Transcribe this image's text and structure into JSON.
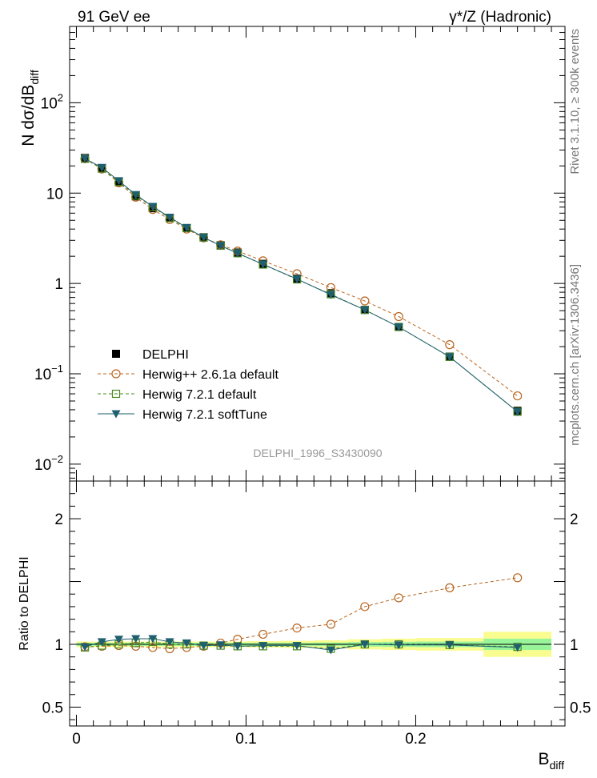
{
  "header": {
    "left": "91 GeV ee",
    "right": "γ*/Z (Hadronic)"
  },
  "side_labels": {
    "rivet": "Rivet 3.1.10, ≥ 300k events",
    "mcplots": "mcplots.cern.ch [arXiv:1306.3436]"
  },
  "watermark": "DELPHI_1996_S3430090",
  "chart_data": [
    {
      "type": "line",
      "panel": "main",
      "yscale": "log",
      "ylabel_main": "N dσ/dB",
      "ylabel_sub": "diff",
      "xlim": [
        -0.004,
        0.288
      ],
      "ylim": [
        0.0065,
        700
      ],
      "y_tick_labels": [
        {
          "main": "10",
          "exp": "−2"
        },
        {
          "main": "10",
          "exp": "−1"
        },
        {
          "main": "1",
          "exp": ""
        },
        {
          "main": "10",
          "exp": ""
        },
        {
          "main": "10",
          "exp": "2"
        }
      ],
      "y_tick_values": [
        0.01,
        0.1,
        1,
        10,
        100
      ],
      "x": [
        0.005,
        0.015,
        0.025,
        0.035,
        0.045,
        0.055,
        0.065,
        0.075,
        0.085,
        0.095,
        0.11,
        0.13,
        0.15,
        0.17,
        0.19,
        0.22,
        0.26
      ],
      "series": [
        {
          "name": "DELPHI",
          "marker": "filled-square",
          "color": "#000000",
          "values": [
            24.5,
            18.8,
            13.2,
            9.2,
            6.8,
            5.3,
            4.1,
            3.25,
            2.65,
            2.2,
            1.65,
            1.13,
            0.78,
            0.51,
            0.33,
            0.155,
            0.039
          ]
        },
        {
          "name": "Herwig++ 2.6.1a default",
          "marker": "open-circle",
          "color": "#b8651f",
          "dash": "4,3",
          "values": [
            24.0,
            18.5,
            13.0,
            9.0,
            6.6,
            5.1,
            4.0,
            3.2,
            2.68,
            2.28,
            1.78,
            1.28,
            0.9,
            0.64,
            0.43,
            0.21,
            0.057
          ]
        },
        {
          "name": "Herwig 7.2.1 default",
          "marker": "open-square",
          "color": "#4a8a1e",
          "dash": "4,3",
          "values": [
            24.0,
            18.7,
            13.3,
            9.4,
            7.0,
            5.3,
            4.1,
            3.22,
            2.62,
            2.16,
            1.62,
            1.11,
            0.76,
            0.51,
            0.33,
            0.154,
            0.038
          ]
        },
        {
          "name": "Herwig 7.2.1 softTune",
          "marker": "filled-triangle-down",
          "color": "#1f5f70",
          "values": [
            24.1,
            19.2,
            13.7,
            9.6,
            7.1,
            5.4,
            4.15,
            3.23,
            2.62,
            2.16,
            1.63,
            1.12,
            0.75,
            0.51,
            0.33,
            0.154,
            0.038
          ]
        }
      ]
    },
    {
      "type": "line",
      "panel": "ratio",
      "ylabel": "Ratio to DELPHI",
      "xlabel_main": "B",
      "xlabel_sub": "diff",
      "xlim": [
        -0.004,
        0.288
      ],
      "ylim": [
        0.35,
        2.3
      ],
      "y_tick_labels": [
        "0.5",
        "1",
        "2"
      ],
      "y_tick_values": [
        0.5,
        1,
        2
      ],
      "x_tick_labels": [
        "0",
        "0.1",
        "0.2"
      ],
      "x_tick_values": [
        0,
        0.1,
        0.2
      ],
      "bin_edges": [
        0.0,
        0.01,
        0.02,
        0.03,
        0.04,
        0.05,
        0.06,
        0.07,
        0.08,
        0.09,
        0.1,
        0.12,
        0.14,
        0.16,
        0.18,
        0.2,
        0.24,
        0.28
      ],
      "band_stat_halfwidth": [
        0.012,
        0.012,
        0.012,
        0.012,
        0.012,
        0.012,
        0.012,
        0.012,
        0.012,
        0.012,
        0.012,
        0.012,
        0.014,
        0.018,
        0.02,
        0.022,
        0.045
      ],
      "band_total_halfwidth": [
        0.022,
        0.022,
        0.022,
        0.022,
        0.022,
        0.022,
        0.022,
        0.022,
        0.022,
        0.022,
        0.025,
        0.028,
        0.032,
        0.04,
        0.045,
        0.05,
        0.1
      ],
      "x": [
        0.005,
        0.015,
        0.025,
        0.035,
        0.045,
        0.055,
        0.065,
        0.075,
        0.085,
        0.095,
        0.11,
        0.13,
        0.15,
        0.17,
        0.19,
        0.22,
        0.26
      ],
      "series": [
        {
          "name": "Herwig++ 2.6.1a default",
          "marker": "open-circle",
          "color": "#b8651f",
          "dash": "4,3",
          "values": [
            0.98,
            0.985,
            0.99,
            0.985,
            0.975,
            0.965,
            0.975,
            0.985,
            1.01,
            1.04,
            1.08,
            1.13,
            1.16,
            1.3,
            1.37,
            1.45,
            1.53
          ]
        },
        {
          "name": "Herwig 7.2.1 default",
          "marker": "open-square",
          "color": "#4a8a1e",
          "dash": "4,3",
          "values": [
            0.975,
            0.99,
            1.0,
            1.01,
            1.02,
            1.0,
            1.0,
            0.99,
            0.99,
            0.985,
            0.985,
            0.985,
            0.965,
            1.0,
            1.0,
            0.995,
            0.98
          ]
        },
        {
          "name": "Herwig 7.2.1 softTune",
          "marker": "filled-triangle-down",
          "color": "#1f5f70",
          "values": [
            0.98,
            1.02,
            1.04,
            1.045,
            1.045,
            1.02,
            1.01,
            0.99,
            0.995,
            0.985,
            0.99,
            0.99,
            0.955,
            1.0,
            0.995,
            0.995,
            0.975
          ]
        }
      ]
    }
  ]
}
